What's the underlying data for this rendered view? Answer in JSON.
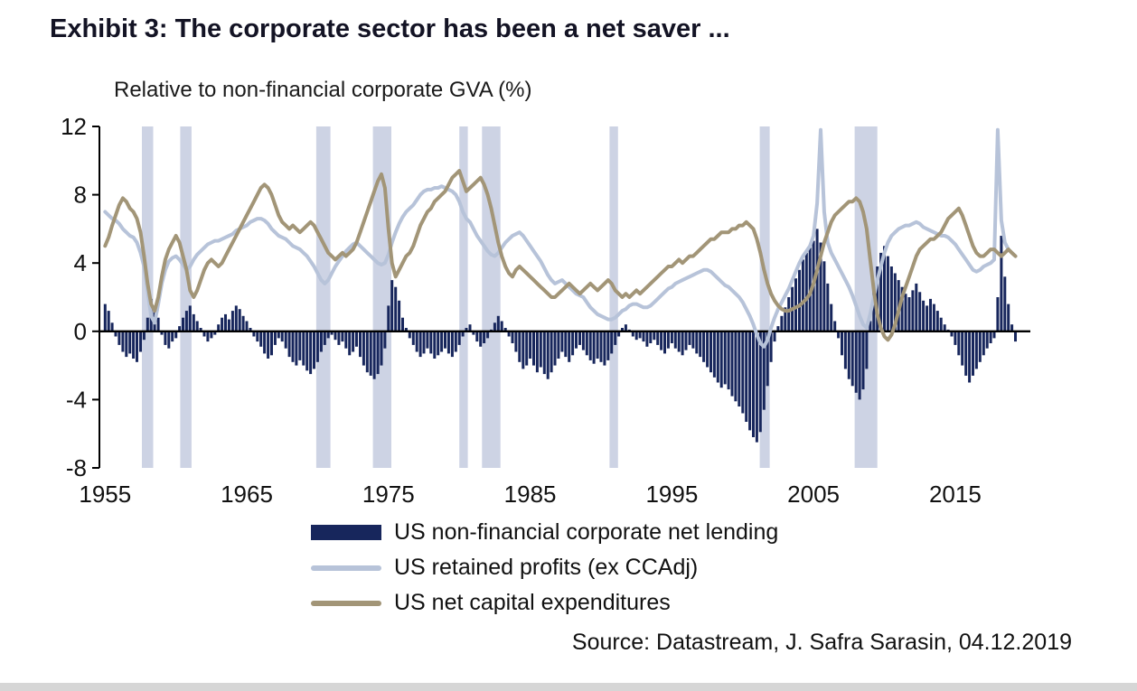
{
  "title": "Exhibit 3: The corporate sector has been a net saver ...",
  "subtitle": "Relative to non-financial corporate GVA (%)",
  "source": "Source: Datastream, J. Safra Sarasin, 04.12.2019",
  "colors": {
    "title": "#131324",
    "axis": "#000000",
    "tick_label": "#111111",
    "recession_band": "#cdd3e4",
    "net_lending_bar": "#17265c",
    "retained_profits_line": "#b7c3d9",
    "capex_line": "#a29577"
  },
  "legend": {
    "items": [
      {
        "label": "US non-financial corporate net lending",
        "swatch": "bar",
        "color": "#17265c"
      },
      {
        "label": "US retained profits (ex CCAdj)",
        "swatch": "line",
        "color": "#b7c3d9"
      },
      {
        "label": "US net capital expenditures",
        "swatch": "line",
        "color": "#a29577"
      }
    ]
  },
  "chart_data": {
    "type": "mixed",
    "title": "Exhibit 3: The corporate sector has been a net saver ...",
    "ylabel": "Relative to non-financial corporate GVA (%)",
    "x_start": 1955.0,
    "x_step": 0.25,
    "xlim": [
      1954.6,
      2020.3
    ],
    "ylim": [
      -8,
      12
    ],
    "yticks": [
      12,
      8,
      4,
      0,
      -4,
      -8
    ],
    "xticks": [
      1955,
      1965,
      1975,
      1985,
      1995,
      2005,
      2015
    ],
    "grid": false,
    "legend_position": "bottom",
    "recessions": [
      [
        1957.6,
        1958.4
      ],
      [
        1960.3,
        1961.1
      ],
      [
        1969.9,
        1970.9
      ],
      [
        1973.9,
        1975.2
      ],
      [
        1980.0,
        1980.6
      ],
      [
        1981.6,
        1982.9
      ],
      [
        1990.6,
        1991.2
      ],
      [
        2001.2,
        2001.9
      ],
      [
        2007.9,
        2009.5
      ]
    ],
    "series": [
      {
        "name": "US non-financial corporate net lending",
        "type": "bar",
        "color": "#17265c",
        "values": [
          1.6,
          1.2,
          0.5,
          -0.3,
          -0.8,
          -1.2,
          -1.5,
          -1.3,
          -1.6,
          -1.8,
          -1.2,
          -0.5,
          0.8,
          1.9,
          1.5,
          0.8,
          -0.2,
          -0.8,
          -1.0,
          -0.6,
          -0.4,
          0.3,
          0.8,
          1.2,
          1.5,
          1.0,
          0.6,
          0.2,
          -0.3,
          -0.6,
          -0.4,
          -0.2,
          0.4,
          0.8,
          1.0,
          0.7,
          1.2,
          1.5,
          1.3,
          0.9,
          0.6,
          0.2,
          -0.3,
          -0.6,
          -0.9,
          -1.3,
          -1.6,
          -1.4,
          -0.8,
          -0.4,
          -0.6,
          -1.0,
          -1.5,
          -1.8,
          -2.0,
          -1.7,
          -2.0,
          -2.3,
          -2.5,
          -2.2,
          -1.8,
          -1.2,
          -0.8,
          -0.4,
          -0.2,
          -0.5,
          -0.8,
          -0.6,
          -1.0,
          -1.4,
          -1.2,
          -0.9,
          -1.5,
          -2.0,
          -2.4,
          -2.6,
          -2.8,
          -2.5,
          -2.0,
          -1.0,
          1.5,
          3.0,
          2.6,
          1.8,
          0.8,
          0.2,
          -0.4,
          -0.8,
          -1.2,
          -1.5,
          -1.3,
          -1.0,
          -1.3,
          -1.6,
          -1.4,
          -1.2,
          -1.0,
          -1.3,
          -1.5,
          -1.2,
          -0.8,
          -0.3,
          0.2,
          0.4,
          -0.2,
          -0.6,
          -0.9,
          -0.7,
          -0.4,
          0.1,
          0.5,
          0.9,
          0.6,
          0.2,
          -0.3,
          -0.7,
          -1.2,
          -1.8,
          -2.2,
          -2.0,
          -1.6,
          -2.0,
          -2.4,
          -2.1,
          -2.5,
          -2.8,
          -2.4,
          -2.0,
          -1.6,
          -1.2,
          -1.5,
          -1.8,
          -1.4,
          -1.0,
          -0.8,
          -1.1,
          -1.4,
          -1.7,
          -1.9,
          -1.6,
          -1.8,
          -2.0,
          -1.7,
          -1.3,
          -0.8,
          -0.3,
          0.2,
          0.4,
          0.1,
          -0.3,
          -0.5,
          -0.4,
          -0.6,
          -0.9,
          -0.7,
          -0.5,
          -0.8,
          -1.1,
          -1.3,
          -1.0,
          -0.7,
          -1.0,
          -1.2,
          -1.4,
          -1.1,
          -0.8,
          -1.0,
          -1.3,
          -1.5,
          -1.8,
          -2.1,
          -2.4,
          -2.7,
          -3.0,
          -3.3,
          -3.1,
          -3.4,
          -3.8,
          -4.1,
          -4.4,
          -4.8,
          -5.3,
          -5.8,
          -6.2,
          -6.5,
          -5.9,
          -4.6,
          -3.2,
          -1.8,
          -0.6,
          0.3,
          0.9,
          1.4,
          2.0,
          2.6,
          3.1,
          3.6,
          4.2,
          4.6,
          4.9,
          5.3,
          6.0,
          5.2,
          4.1,
          2.8,
          1.6,
          0.6,
          -0.4,
          -1.4,
          -2.2,
          -2.8,
          -3.2,
          -3.6,
          -4.0,
          -3.4,
          -2.2,
          0.6,
          2.4,
          3.8,
          4.6,
          5.0,
          4.4,
          3.8,
          3.4,
          3.0,
          2.6,
          2.2,
          2.0,
          2.4,
          2.8,
          2.3,
          1.8,
          1.5,
          1.9,
          1.6,
          1.2,
          0.8,
          0.4,
          0.1,
          -0.3,
          -0.8,
          -1.4,
          -2.0,
          -2.6,
          -3.0,
          -2.6,
          -2.2,
          -1.8,
          -1.4,
          -1.0,
          -0.7,
          -0.4,
          2.0,
          5.6,
          3.2,
          1.6,
          0.4,
          -0.6
        ]
      },
      {
        "name": "US retained profits (ex CCAdj)",
        "type": "line",
        "color": "#b7c3d9",
        "values": [
          7.0,
          6.8,
          6.6,
          6.5,
          6.3,
          6.0,
          5.8,
          5.6,
          5.5,
          5.2,
          4.6,
          3.8,
          2.4,
          0.9,
          0.5,
          1.6,
          2.8,
          3.6,
          4.1,
          4.3,
          4.4,
          4.2,
          3.9,
          3.6,
          3.8,
          4.2,
          4.5,
          4.7,
          4.9,
          5.1,
          5.2,
          5.3,
          5.3,
          5.4,
          5.5,
          5.6,
          5.7,
          5.9,
          6.0,
          6.1,
          6.2,
          6.4,
          6.5,
          6.6,
          6.6,
          6.5,
          6.3,
          6.0,
          5.8,
          5.6,
          5.5,
          5.4,
          5.2,
          5.0,
          4.9,
          4.8,
          4.6,
          4.4,
          4.1,
          3.8,
          3.4,
          3.0,
          2.8,
          3.0,
          3.4,
          3.8,
          4.1,
          4.4,
          4.7,
          4.9,
          5.1,
          5.2,
          5.0,
          4.8,
          4.6,
          4.4,
          4.2,
          4.0,
          3.9,
          4.0,
          4.5,
          5.2,
          5.8,
          6.3,
          6.7,
          7.0,
          7.2,
          7.4,
          7.7,
          8.0,
          8.2,
          8.3,
          8.3,
          8.4,
          8.4,
          8.5,
          8.4,
          8.3,
          8.2,
          8.0,
          7.6,
          7.0,
          6.6,
          6.4,
          6.0,
          5.6,
          5.3,
          5.0,
          4.7,
          4.5,
          4.4,
          4.6,
          4.9,
          5.2,
          5.4,
          5.6,
          5.7,
          5.8,
          5.6,
          5.3,
          5.0,
          4.7,
          4.4,
          4.1,
          3.7,
          3.3,
          3.0,
          2.8,
          2.9,
          3.0,
          2.8,
          2.6,
          2.4,
          2.2,
          2.1,
          2.0,
          1.7,
          1.4,
          1.2,
          1.0,
          0.9,
          0.8,
          0.7,
          0.7,
          0.8,
          1.0,
          1.2,
          1.3,
          1.5,
          1.6,
          1.6,
          1.5,
          1.4,
          1.4,
          1.5,
          1.7,
          1.9,
          2.1,
          2.3,
          2.5,
          2.6,
          2.8,
          2.9,
          3.0,
          3.1,
          3.2,
          3.3,
          3.4,
          3.5,
          3.6,
          3.6,
          3.5,
          3.3,
          3.1,
          2.9,
          2.7,
          2.6,
          2.4,
          2.2,
          2.0,
          1.7,
          1.3,
          0.9,
          0.4,
          -0.2,
          -0.7,
          -0.9,
          -0.5,
          0.2,
          0.8,
          1.3,
          1.7,
          2.1,
          2.5,
          3.0,
          3.5,
          4.0,
          4.4,
          4.7,
          5.0,
          5.6,
          7.5,
          11.8,
          7.0,
          5.2,
          4.6,
          4.2,
          3.8,
          3.4,
          3.0,
          2.6,
          2.1,
          1.5,
          0.9,
          0.4,
          0.2,
          1.0,
          2.0,
          3.0,
          3.8,
          4.6,
          5.2,
          5.6,
          5.8,
          6.0,
          6.1,
          6.2,
          6.2,
          6.3,
          6.4,
          6.3,
          6.1,
          6.0,
          5.9,
          5.8,
          5.7,
          5.6,
          5.6,
          5.5,
          5.3,
          5.1,
          4.8,
          4.5,
          4.2,
          3.9,
          3.6,
          3.5,
          3.6,
          3.8,
          3.9,
          4.0,
          4.2,
          11.8,
          6.5,
          5.2,
          4.8,
          4.6,
          4.4
        ]
      },
      {
        "name": "US net capital expenditures",
        "type": "line",
        "color": "#a29577",
        "values": [
          5.0,
          5.5,
          6.2,
          6.8,
          7.4,
          7.8,
          7.6,
          7.2,
          7.0,
          6.6,
          5.8,
          4.4,
          2.8,
          1.6,
          1.2,
          2.0,
          3.2,
          4.2,
          4.8,
          5.2,
          5.6,
          5.2,
          4.4,
          3.6,
          2.4,
          2.0,
          2.4,
          3.0,
          3.6,
          4.0,
          4.2,
          4.0,
          3.8,
          4.0,
          4.4,
          4.8,
          5.2,
          5.6,
          6.0,
          6.4,
          6.8,
          7.2,
          7.6,
          8.0,
          8.4,
          8.6,
          8.4,
          8.0,
          7.4,
          6.8,
          6.4,
          6.2,
          6.0,
          6.2,
          6.0,
          5.8,
          6.0,
          6.2,
          6.4,
          6.2,
          5.8,
          5.4,
          5.0,
          4.6,
          4.4,
          4.2,
          4.4,
          4.6,
          4.4,
          4.6,
          4.8,
          5.2,
          5.8,
          6.4,
          7.0,
          7.6,
          8.2,
          8.8,
          9.2,
          8.4,
          6.0,
          4.0,
          3.2,
          3.6,
          4.0,
          4.4,
          4.6,
          5.0,
          5.6,
          6.2,
          6.6,
          7.0,
          7.2,
          7.6,
          7.8,
          8.0,
          8.2,
          8.6,
          9.0,
          9.2,
          9.4,
          8.8,
          8.2,
          8.4,
          8.6,
          8.8,
          9.0,
          8.6,
          8.0,
          7.2,
          6.2,
          5.2,
          4.4,
          3.8,
          3.4,
          3.2,
          3.6,
          3.8,
          3.6,
          3.4,
          3.2,
          3.0,
          2.8,
          2.6,
          2.4,
          2.2,
          2.0,
          2.0,
          2.2,
          2.4,
          2.6,
          2.8,
          2.6,
          2.4,
          2.2,
          2.4,
          2.6,
          2.8,
          2.6,
          2.4,
          2.6,
          2.8,
          3.0,
          2.8,
          2.4,
          2.2,
          2.0,
          2.2,
          2.0,
          2.2,
          2.4,
          2.2,
          2.4,
          2.6,
          2.8,
          3.0,
          3.2,
          3.4,
          3.6,
          3.8,
          3.8,
          4.0,
          4.2,
          4.0,
          4.2,
          4.4,
          4.4,
          4.6,
          4.8,
          5.0,
          5.2,
          5.4,
          5.4,
          5.6,
          5.8,
          5.8,
          5.8,
          6.0,
          6.0,
          6.2,
          6.2,
          6.4,
          6.2,
          6.0,
          5.4,
          4.6,
          3.6,
          2.8,
          2.2,
          1.8,
          1.5,
          1.3,
          1.2,
          1.2,
          1.3,
          1.4,
          1.5,
          1.7,
          1.9,
          2.2,
          2.8,
          3.6,
          4.4,
          5.2,
          5.8,
          6.4,
          6.8,
          7.0,
          7.2,
          7.4,
          7.6,
          7.6,
          7.8,
          7.6,
          7.0,
          6.0,
          4.2,
          2.4,
          1.0,
          0.2,
          -0.3,
          -0.5,
          -0.2,
          0.4,
          1.2,
          2.0,
          2.6,
          3.2,
          3.8,
          4.4,
          4.8,
          5.0,
          5.2,
          5.4,
          5.4,
          5.6,
          5.8,
          6.2,
          6.6,
          6.8,
          7.0,
          7.2,
          6.8,
          6.2,
          5.6,
          5.0,
          4.6,
          4.4,
          4.4,
          4.6,
          4.8,
          4.8,
          4.6,
          4.4,
          4.6,
          4.8,
          4.6,
          4.4
        ]
      }
    ]
  }
}
